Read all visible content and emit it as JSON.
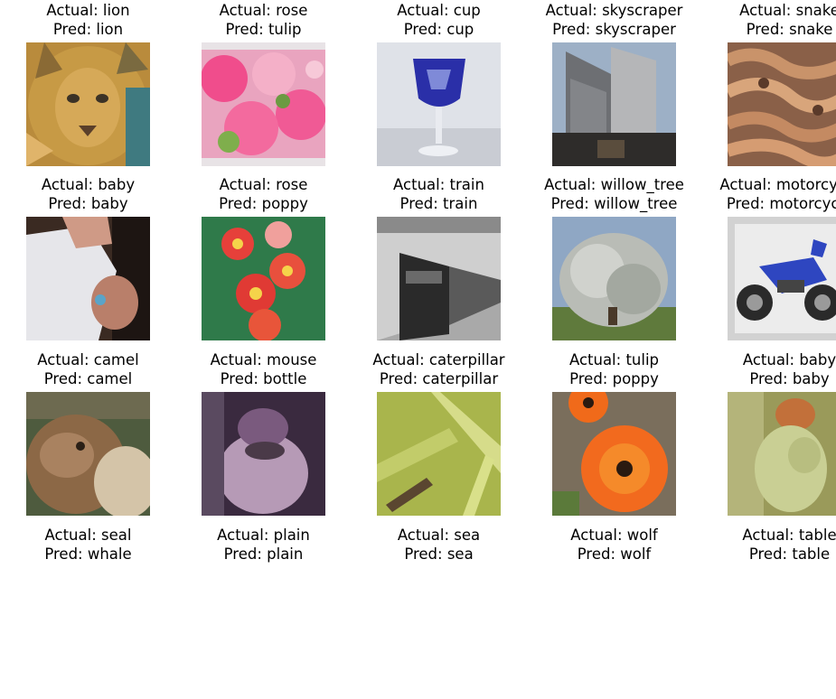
{
  "figure": {
    "panels": [
      {
        "actual": "Actual: lion",
        "pred": "Pred: lion",
        "image": "lion-photo"
      },
      {
        "actual": "Actual: rose",
        "pred": "Pred: tulip",
        "image": "pink-flowers-photo"
      },
      {
        "actual": "Actual: cup",
        "pred": "Pred: cup",
        "image": "blue-glass-cup-photo"
      },
      {
        "actual": "Actual: skyscraper",
        "pred": "Pred: skyscraper",
        "image": "skyscraper-photo"
      },
      {
        "actual": "Actual: snake",
        "pred": "Pred: snake",
        "image": "snake-photo"
      },
      {
        "actual": "Actual: baby",
        "pred": "Pred: baby",
        "image": "baby-photo"
      },
      {
        "actual": "Actual: rose",
        "pred": "Pred: poppy",
        "image": "red-flowers-photo"
      },
      {
        "actual": "Actual: train",
        "pred": "Pred: train",
        "image": "train-photo"
      },
      {
        "actual": "Actual: willow_tree",
        "pred": "Pred: willow_tree",
        "image": "willow-tree-photo"
      },
      {
        "actual": "Actual: motorcycle",
        "pred": "Pred: motorcycle",
        "image": "motorcycle-photo"
      },
      {
        "actual": "Actual: camel",
        "pred": "Pred: camel",
        "image": "camel-photo"
      },
      {
        "actual": "Actual: mouse",
        "pred": "Pred: bottle",
        "image": "mouse-photo"
      },
      {
        "actual": "Actual: caterpillar",
        "pred": "Pred: caterpillar",
        "image": "caterpillar-photo"
      },
      {
        "actual": "Actual: tulip",
        "pred": "Pred: poppy",
        "image": "orange-flower-photo"
      },
      {
        "actual": "Actual: baby",
        "pred": "Pred: baby",
        "image": "baby-photo"
      },
      {
        "actual": "Actual: seal",
        "pred": "Pred: whale",
        "image": "seal-photo"
      },
      {
        "actual": "Actual: plain",
        "pred": "Pred: plain",
        "image": "plain-photo"
      },
      {
        "actual": "Actual: sea",
        "pred": "Pred: sea",
        "image": "sea-photo"
      },
      {
        "actual": "Actual: wolf",
        "pred": "Pred: wolf",
        "image": "wolf-photo"
      },
      {
        "actual": "Actual: table",
        "pred": "Pred: table",
        "image": "table-photo"
      }
    ]
  }
}
